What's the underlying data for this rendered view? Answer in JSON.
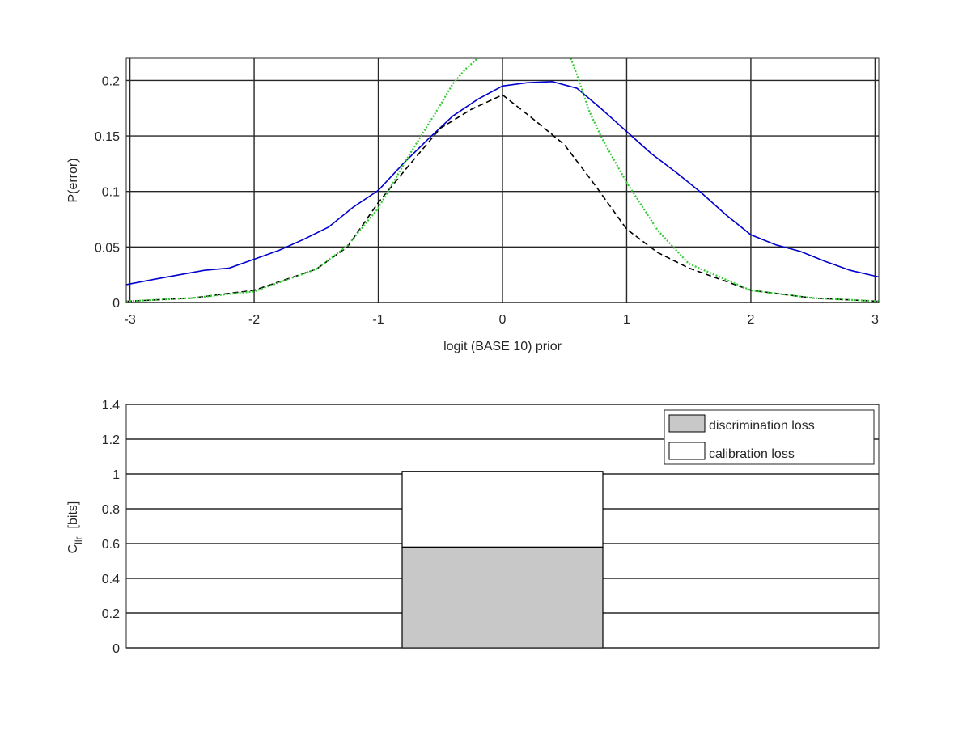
{
  "chart_data": [
    {
      "type": "line",
      "xlabel": "logit (BASE 10) prior",
      "ylabel": "P(error)",
      "xlim": [
        -3.03,
        3.03
      ],
      "ylim": [
        0,
        0.22
      ],
      "x_ticks": [
        -3,
        -2,
        -1,
        0,
        1,
        2,
        3
      ],
      "x_tick_labels": [
        "-3",
        "-2",
        "-1",
        "0",
        "1",
        "2",
        "3"
      ],
      "y_ticks": [
        0,
        0.05,
        0.1,
        0.15,
        0.2
      ],
      "y_tick_labels": [
        "0",
        "0.05",
        "0.1",
        "0.15",
        "0.2"
      ],
      "grid": true,
      "series": [
        {
          "color": "#0000cc",
          "style": "solid",
          "x": [
            -3.03,
            -2.8,
            -2.6,
            -2.4,
            -2.2,
            -2.0,
            -1.8,
            -1.6,
            -1.4,
            -1.2,
            -1.0,
            -0.8,
            -0.6,
            -0.4,
            -0.2,
            0.0,
            0.2,
            0.4,
            0.6,
            0.8,
            1.0,
            1.2,
            1.4,
            1.6,
            1.8,
            2.0,
            2.2,
            2.4,
            2.6,
            2.8,
            3.03
          ],
          "y": [
            0.016,
            0.021,
            0.025,
            0.029,
            0.031,
            0.039,
            0.047,
            0.057,
            0.068,
            0.086,
            0.101,
            0.125,
            0.147,
            0.168,
            0.183,
            0.195,
            0.198,
            0.199,
            0.193,
            0.174,
            0.154,
            0.134,
            0.117,
            0.099,
            0.079,
            0.061,
            0.052,
            0.046,
            0.037,
            0.029,
            0.023
          ]
        },
        {
          "color": "#000000",
          "style": "dashed",
          "x": [
            -3.03,
            -2.5,
            -2.0,
            -1.5,
            -1.25,
            -1.0,
            -0.75,
            -0.5,
            -0.25,
            0.0,
            0.25,
            0.5,
            0.75,
            1.0,
            1.25,
            1.5,
            2.0,
            2.5,
            3.03
          ],
          "y": [
            0.001,
            0.004,
            0.011,
            0.03,
            0.05,
            0.09,
            0.124,
            0.157,
            0.174,
            0.187,
            0.165,
            0.142,
            0.105,
            0.066,
            0.045,
            0.031,
            0.011,
            0.004,
            0.001
          ]
        },
        {
          "color": "#33cc33",
          "style": "dotted",
          "x": [
            -3.03,
            -2.5,
            -2.0,
            -1.5,
            -1.25,
            -1.0,
            -0.75,
            -0.6,
            -0.5,
            -0.4,
            -0.3,
            -0.2
          ],
          "y": [
            0.001,
            0.004,
            0.01,
            0.03,
            0.051,
            0.085,
            0.133,
            0.16,
            0.178,
            0.197,
            0.21,
            0.22
          ]
        },
        {
          "color": "#33cc33",
          "style": "dotted",
          "x": [
            0.55,
            0.6,
            0.7,
            0.8,
            0.9,
            1.0,
            1.25,
            1.5,
            2.0,
            2.5,
            3.03
          ],
          "y": [
            0.22,
            0.205,
            0.172,
            0.148,
            0.128,
            0.108,
            0.065,
            0.035,
            0.011,
            0.004,
            0.001
          ]
        }
      ]
    },
    {
      "type": "bar",
      "stacked": true,
      "ylabel": "C",
      "ylabel_sub": "llr",
      "ylabel_unit": "[bits]",
      "ylim": [
        0,
        1.4
      ],
      "y_ticks": [
        0,
        0.2,
        0.4,
        0.6,
        0.8,
        1,
        1.2,
        1.4
      ],
      "y_tick_labels": [
        "0",
        "0.2",
        "0.4",
        "0.6",
        "0.8",
        "1",
        "1.2",
        "1.4"
      ],
      "grid": true,
      "legend": "top-right",
      "series": [
        {
          "name": "discrimination loss",
          "color": "#c8c8c8",
          "values": [
            0.58
          ]
        },
        {
          "name": "calibration loss",
          "color": "#ffffff",
          "values": [
            0.435
          ]
        }
      ]
    }
  ]
}
